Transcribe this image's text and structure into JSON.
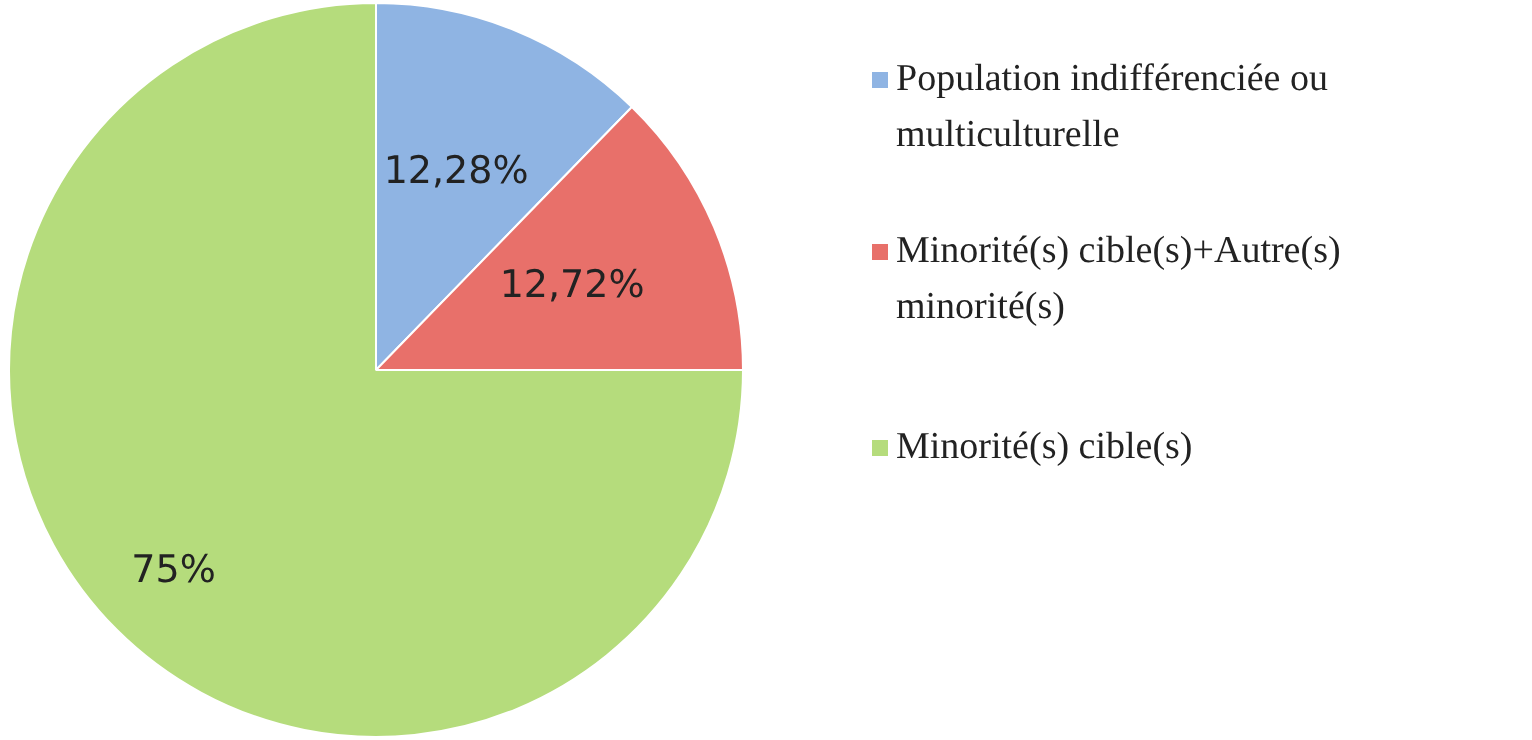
{
  "chart_data": {
    "type": "pie",
    "categories": [
      "Population indifférenciée ou multiculturelle",
      "Minorité(s) cible(s)+Autre(s) minorité(s)",
      "Minorité(s) cible(s)"
    ],
    "values": [
      12.28,
      12.72,
      75
    ],
    "colors": [
      "#8fb4e3",
      "#e8706a",
      "#b5dc7c"
    ],
    "value_labels": [
      "12,28%",
      "12,72%",
      "75%"
    ],
    "legend": "right"
  }
}
